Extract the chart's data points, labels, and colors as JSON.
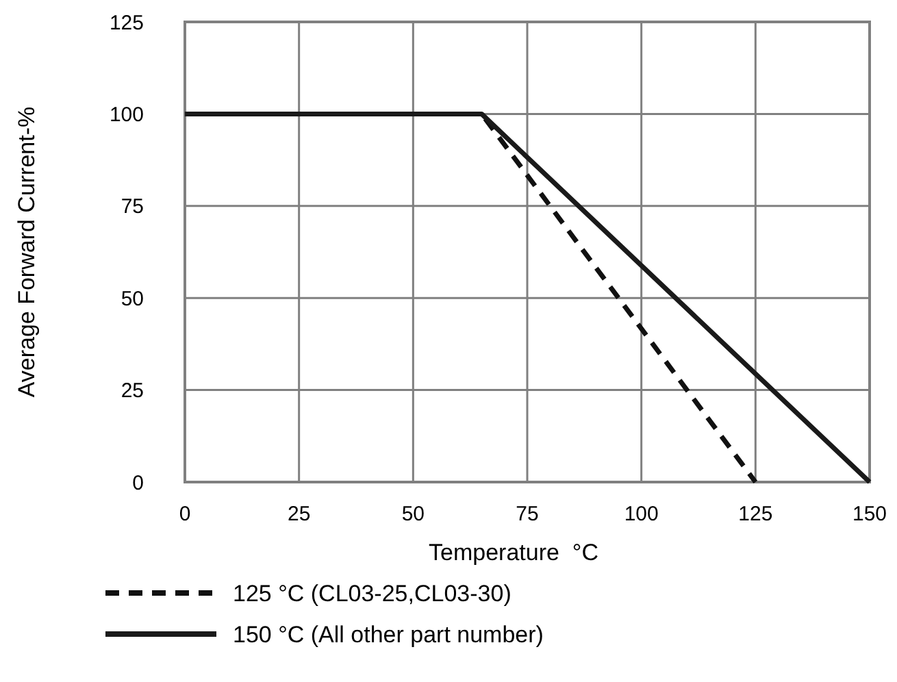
{
  "chart_data": {
    "type": "line",
    "xlabel": "Temperature  °C",
    "ylabel": "Average Forward Current-%",
    "xlim": [
      0,
      150
    ],
    "xticks": [
      0,
      25,
      50,
      75,
      100,
      125,
      150
    ],
    "ylim": [
      0,
      125
    ],
    "yticks": [
      0,
      25,
      50,
      75,
      100,
      125
    ],
    "grid": true,
    "legend": "bottom",
    "marker": "none",
    "series": [
      {
        "name": "125 °C (CL03-25,CL03-30)",
        "color": "#111111",
        "line_style": "dashed",
        "x": [
          0,
          65,
          125
        ],
        "values": [
          100,
          100,
          0
        ]
      },
      {
        "name": "150 °C (All other part number)",
        "color": "#1a1a1a",
        "line_style": "solid",
        "x": [
          0,
          65,
          150
        ],
        "values": [
          100,
          100,
          0
        ]
      }
    ]
  }
}
